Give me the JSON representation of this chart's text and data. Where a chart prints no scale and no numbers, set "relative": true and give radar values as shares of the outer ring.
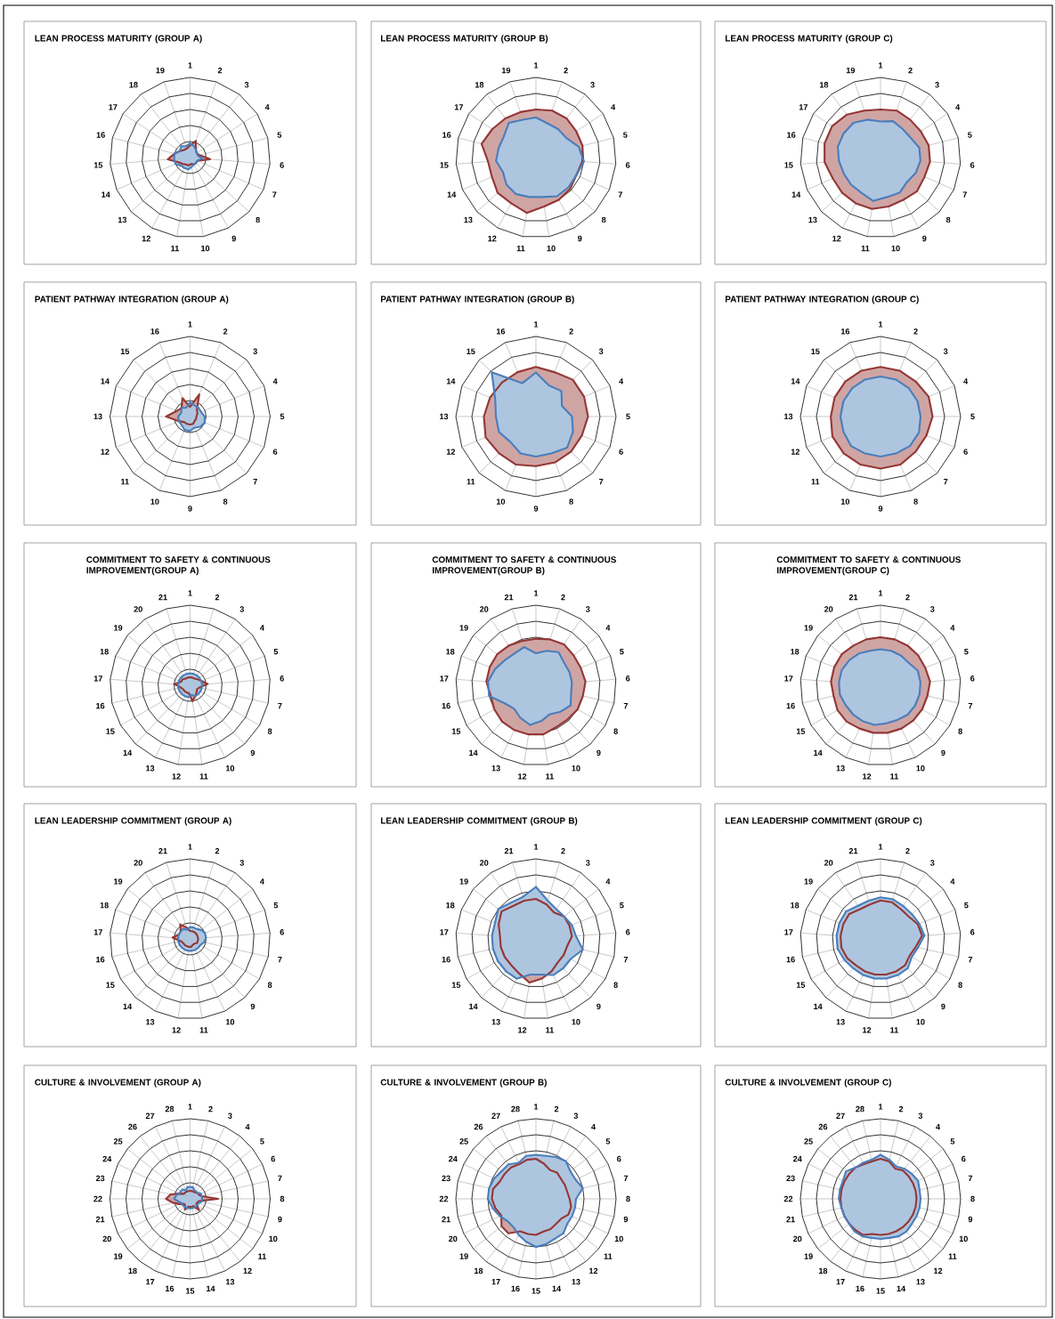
{
  "chart_data": [
    {
      "type": "radar",
      "title": "LEAN PROCESS MATURITY (GROUP A)",
      "relative": true,
      "grid": true,
      "categories": [
        "1",
        "2",
        "3",
        "4",
        "5",
        "6",
        "7",
        "8",
        "9",
        "10",
        "11",
        "12",
        "13",
        "14",
        "15",
        "16",
        "17",
        "18",
        "19"
      ],
      "series": [
        {
          "color": "#953735",
          "values": [
            0.15,
            0.22,
            0.12,
            0.1,
            0.12,
            0.25,
            0.1,
            0.1,
            0.1,
            0.08,
            0.1,
            0.1,
            0.12,
            0.15,
            0.28,
            0.2,
            0.15,
            0.12,
            0.12
          ]
        },
        {
          "color": "#4a7ebb",
          "values": [
            0.18,
            0.15,
            0.12,
            0.1,
            0.1,
            0.15,
            0.1,
            0.1,
            0.1,
            0.12,
            0.15,
            0.15,
            0.15,
            0.2,
            0.2,
            0.2,
            0.15,
            0.18,
            0.15
          ]
        }
      ]
    },
    {
      "type": "radar",
      "title": "LEAN PROCESS MATURITY (GROUP B)",
      "relative": true,
      "grid": true,
      "categories": [
        "1",
        "2",
        "3",
        "4",
        "5",
        "6",
        "7",
        "8",
        "9",
        "10",
        "11",
        "12",
        "13",
        "14",
        "15",
        "16",
        "17",
        "18",
        "19"
      ],
      "series": [
        {
          "color": "#953735",
          "values": [
            0.6,
            0.62,
            0.62,
            0.6,
            0.6,
            0.58,
            0.55,
            0.58,
            0.6,
            0.62,
            0.7,
            0.65,
            0.65,
            0.6,
            0.6,
            0.7,
            0.65,
            0.62,
            0.6
          ]
        },
        {
          "color": "#4a7ebb",
          "values": [
            0.5,
            0.45,
            0.45,
            0.45,
            0.55,
            0.6,
            0.55,
            0.55,
            0.55,
            0.5,
            0.5,
            0.52,
            0.5,
            0.45,
            0.5,
            0.48,
            0.48,
            0.55,
            0.5
          ]
        }
      ]
    },
    {
      "type": "radar",
      "title": "LEAN PROCESS MATURITY (GROUP C)",
      "relative": true,
      "grid": true,
      "categories": [
        "1",
        "2",
        "3",
        "4",
        "5",
        "6",
        "7",
        "8",
        "9",
        "10",
        "11",
        "12",
        "13",
        "14",
        "15",
        "16",
        "17",
        "18",
        "19"
      ],
      "series": [
        {
          "color": "#953735",
          "values": [
            0.6,
            0.62,
            0.6,
            0.6,
            0.62,
            0.62,
            0.6,
            0.62,
            0.6,
            0.62,
            0.65,
            0.65,
            0.65,
            0.65,
            0.7,
            0.72,
            0.72,
            0.68,
            0.62
          ]
        },
        {
          "color": "#4a7ebb",
          "values": [
            0.45,
            0.48,
            0.45,
            0.45,
            0.5,
            0.5,
            0.48,
            0.45,
            0.5,
            0.5,
            0.55,
            0.5,
            0.5,
            0.5,
            0.52,
            0.55,
            0.55,
            0.55,
            0.5
          ]
        }
      ]
    },
    {
      "type": "radar",
      "title": "PATIENT PATHWAY INTEGRATION (GROUP A)",
      "relative": true,
      "grid": true,
      "categories": [
        "1",
        "2",
        "3",
        "4",
        "5",
        "6",
        "7",
        "8",
        "9",
        "10",
        "11",
        "12",
        "13",
        "14",
        "15",
        "16"
      ],
      "series": [
        {
          "color": "#953735",
          "values": [
            0.12,
            0.3,
            0.12,
            0.1,
            0.08,
            0.08,
            0.08,
            0.1,
            0.1,
            0.1,
            0.1,
            0.15,
            0.3,
            0.18,
            0.15,
            0.25
          ]
        },
        {
          "color": "#4a7ebb",
          "values": [
            0.18,
            0.15,
            0.15,
            0.15,
            0.18,
            0.2,
            0.18,
            0.15,
            0.18,
            0.18,
            0.15,
            0.15,
            0.15,
            0.12,
            0.15,
            0.12
          ]
        }
      ]
    },
    {
      "type": "radar",
      "title": "PATIENT PATHWAY INTEGRATION (GROUP B)",
      "relative": true,
      "grid": true,
      "categories": [
        "1",
        "2",
        "3",
        "4",
        "5",
        "6",
        "7",
        "8",
        "9",
        "10",
        "11",
        "12",
        "13",
        "14",
        "15",
        "16"
      ],
      "series": [
        {
          "color": "#953735",
          "values": [
            0.62,
            0.6,
            0.65,
            0.65,
            0.65,
            0.62,
            0.62,
            0.62,
            0.62,
            0.65,
            0.65,
            0.68,
            0.65,
            0.62,
            0.6,
            0.6
          ]
        },
        {
          "color": "#4a7ebb",
          "values": [
            0.55,
            0.42,
            0.45,
            0.35,
            0.45,
            0.5,
            0.55,
            0.5,
            0.5,
            0.5,
            0.45,
            0.5,
            0.5,
            0.55,
            0.78,
            0.45
          ]
        }
      ]
    },
    {
      "type": "radar",
      "title": "PATIENT PATHWAY INTEGRATION (GROUP C)",
      "relative": true,
      "grid": true,
      "categories": [
        "1",
        "2",
        "3",
        "4",
        "5",
        "6",
        "7",
        "8",
        "9",
        "10",
        "11",
        "12",
        "13",
        "14",
        "15",
        "16"
      ],
      "series": [
        {
          "color": "#953735",
          "values": [
            0.62,
            0.62,
            0.62,
            0.65,
            0.65,
            0.62,
            0.62,
            0.65,
            0.65,
            0.65,
            0.65,
            0.65,
            0.62,
            0.62,
            0.62,
            0.62
          ]
        },
        {
          "color": "#4a7ebb",
          "values": [
            0.5,
            0.5,
            0.5,
            0.5,
            0.5,
            0.52,
            0.52,
            0.5,
            0.5,
            0.5,
            0.52,
            0.5,
            0.5,
            0.5,
            0.5,
            0.5
          ]
        }
      ]
    },
    {
      "type": "radar",
      "title": "COMMITMENT TO SAFETY & CONTINUOUS IMPROVEMENT(GROUP A)",
      "relative": true,
      "grid": true,
      "categories": [
        "1",
        "2",
        "3",
        "4",
        "5",
        "6",
        "7",
        "8",
        "9",
        "10",
        "11",
        "12",
        "13",
        "14",
        "15",
        "16",
        "17",
        "18",
        "19",
        "20",
        "21"
      ],
      "series": [
        {
          "color": "#953735",
          "values": [
            0.1,
            0.1,
            0.1,
            0.12,
            0.15,
            0.22,
            0.12,
            0.1,
            0.12,
            0.15,
            0.2,
            0.1,
            0.1,
            0.1,
            0.1,
            0.12,
            0.2,
            0.12,
            0.12,
            0.1,
            0.1
          ]
        },
        {
          "color": "#4a7ebb",
          "values": [
            0.15,
            0.15,
            0.15,
            0.15,
            0.15,
            0.15,
            0.15,
            0.15,
            0.15,
            0.15,
            0.12,
            0.15,
            0.15,
            0.15,
            0.15,
            0.15,
            0.15,
            0.15,
            0.15,
            0.15,
            0.15
          ]
        }
      ]
    },
    {
      "type": "radar",
      "title": "COMMITMENT TO SAFETY & CONTINUOUS IMPROVEMENT(GROUP B)",
      "relative": true,
      "grid": true,
      "categories": [
        "1",
        "2",
        "3",
        "4",
        "5",
        "6",
        "7",
        "8",
        "9",
        "10",
        "11",
        "12",
        "13",
        "14",
        "15",
        "16",
        "17",
        "18",
        "19",
        "20",
        "21"
      ],
      "series": [
        {
          "color": "#953735",
          "values": [
            0.58,
            0.6,
            0.62,
            0.6,
            0.6,
            0.62,
            0.6,
            0.6,
            0.58,
            0.58,
            0.62,
            0.62,
            0.62,
            0.62,
            0.6,
            0.58,
            0.62,
            0.62,
            0.62,
            0.6,
            0.58
          ]
        },
        {
          "color": "#4a7ebb",
          "values": [
            0.4,
            0.45,
            0.5,
            0.45,
            0.45,
            0.45,
            0.45,
            0.5,
            0.45,
            0.4,
            0.45,
            0.5,
            0.45,
            0.4,
            0.45,
            0.6,
            0.6,
            0.55,
            0.5,
            0.48,
            0.5
          ]
        }
      ]
    },
    {
      "type": "radar",
      "title": "COMMITMENT TO SAFETY & CONTINUOUS IMPROVEMENT(GROUP C)",
      "relative": true,
      "grid": true,
      "categories": [
        "1",
        "2",
        "3",
        "4",
        "5",
        "6",
        "7",
        "8",
        "9",
        "10",
        "11",
        "12",
        "13",
        "14",
        "15",
        "16",
        "17",
        "18",
        "19",
        "20",
        "21"
      ],
      "series": [
        {
          "color": "#953735",
          "values": [
            0.6,
            0.6,
            0.6,
            0.6,
            0.6,
            0.62,
            0.6,
            0.6,
            0.6,
            0.6,
            0.6,
            0.6,
            0.6,
            0.62,
            0.62,
            0.6,
            0.62,
            0.62,
            0.62,
            0.6,
            0.6
          ]
        },
        {
          "color": "#4a7ebb",
          "values": [
            0.45,
            0.45,
            0.45,
            0.45,
            0.5,
            0.5,
            0.5,
            0.5,
            0.5,
            0.48,
            0.48,
            0.5,
            0.5,
            0.5,
            0.5,
            0.52,
            0.52,
            0.52,
            0.5,
            0.48,
            0.45
          ]
        }
      ]
    },
    {
      "type": "radar",
      "title": "LEAN LEADERSHIP COMMITMENT (GROUP A)",
      "relative": true,
      "grid": true,
      "categories": [
        "1",
        "2",
        "3",
        "4",
        "5",
        "6",
        "7",
        "8",
        "9",
        "10",
        "11",
        "12",
        "13",
        "14",
        "15",
        "16",
        "17",
        "18",
        "19",
        "20",
        "21"
      ],
      "series": [
        {
          "color": "#953735",
          "values": [
            0.1,
            0.1,
            0.1,
            0.1,
            0.1,
            0.1,
            0.1,
            0.1,
            0.08,
            0.08,
            0.1,
            0.1,
            0.1,
            0.1,
            0.1,
            0.12,
            0.22,
            0.15,
            0.15,
            0.22,
            0.15
          ]
        },
        {
          "color": "#4a7ebb",
          "values": [
            0.15,
            0.15,
            0.15,
            0.18,
            0.2,
            0.2,
            0.18,
            0.15,
            0.15,
            0.15,
            0.15,
            0.15,
            0.15,
            0.15,
            0.15,
            0.15,
            0.15,
            0.15,
            0.15,
            0.15,
            0.12
          ]
        }
      ]
    },
    {
      "type": "radar",
      "title": "LEAN LEADERSHIP COMMITMENT (GROUP B)",
      "relative": true,
      "grid": true,
      "categories": [
        "1",
        "2",
        "3",
        "4",
        "5",
        "6",
        "7",
        "8",
        "9",
        "10",
        "11",
        "12",
        "13",
        "14",
        "15",
        "16",
        "17",
        "18",
        "19",
        "20",
        "21"
      ],
      "series": [
        {
          "color": "#953735",
          "values": [
            0.5,
            0.45,
            0.4,
            0.45,
            0.45,
            0.45,
            0.4,
            0.4,
            0.4,
            0.45,
            0.5,
            0.55,
            0.48,
            0.45,
            0.45,
            0.45,
            0.45,
            0.5,
            0.55,
            0.5,
            0.5
          ]
        },
        {
          "color": "#4a7ebb",
          "values": [
            0.65,
            0.5,
            0.45,
            0.45,
            0.48,
            0.5,
            0.6,
            0.5,
            0.5,
            0.5,
            0.45,
            0.45,
            0.55,
            0.55,
            0.55,
            0.55,
            0.55,
            0.55,
            0.6,
            0.55,
            0.55
          ]
        }
      ]
    },
    {
      "type": "radar",
      "title": "LEAN LEADERSHIP COMMITMENT (GROUP C)",
      "relative": true,
      "grid": true,
      "categories": [
        "1",
        "2",
        "3",
        "4",
        "5",
        "6",
        "7",
        "8",
        "9",
        "10",
        "11",
        "12",
        "13",
        "14",
        "15",
        "16",
        "17",
        "18",
        "19",
        "20",
        "21"
      ],
      "series": [
        {
          "color": "#953735",
          "values": [
            0.48,
            0.48,
            0.45,
            0.45,
            0.5,
            0.52,
            0.45,
            0.42,
            0.45,
            0.45,
            0.45,
            0.45,
            0.45,
            0.45,
            0.48,
            0.5,
            0.5,
            0.5,
            0.5,
            0.45,
            0.45
          ]
        },
        {
          "color": "#4a7ebb",
          "values": [
            0.52,
            0.52,
            0.5,
            0.5,
            0.52,
            0.55,
            0.48,
            0.45,
            0.5,
            0.5,
            0.5,
            0.5,
            0.5,
            0.5,
            0.52,
            0.55,
            0.55,
            0.55,
            0.55,
            0.5,
            0.5
          ]
        }
      ]
    },
    {
      "type": "radar",
      "title": "CULTURE & INVOLVEMENT (GROUP A)",
      "relative": true,
      "grid": true,
      "categories": [
        "1",
        "2",
        "3",
        "4",
        "5",
        "6",
        "7",
        "8",
        "9",
        "10",
        "11",
        "12",
        "13",
        "14",
        "15",
        "16",
        "17",
        "18",
        "19",
        "20",
        "21",
        "22",
        "23",
        "24",
        "25",
        "26",
        "27",
        "28"
      ],
      "series": [
        {
          "color": "#953735",
          "values": [
            0.1,
            0.1,
            0.1,
            0.1,
            0.12,
            0.12,
            0.15,
            0.35,
            0.12,
            0.1,
            0.1,
            0.18,
            0.1,
            0.1,
            0.1,
            0.1,
            0.15,
            0.1,
            0.1,
            0.15,
            0.22,
            0.3,
            0.25,
            0.15,
            0.1,
            0.1,
            0.1,
            0.1
          ]
        },
        {
          "color": "#4a7ebb",
          "values": [
            0.15,
            0.15,
            0.12,
            0.12,
            0.12,
            0.15,
            0.15,
            0.15,
            0.15,
            0.12,
            0.12,
            0.12,
            0.12,
            0.12,
            0.12,
            0.12,
            0.12,
            0.12,
            0.12,
            0.12,
            0.15,
            0.2,
            0.18,
            0.15,
            0.15,
            0.15,
            0.12,
            0.15
          ]
        }
      ]
    },
    {
      "type": "radar",
      "title": "CULTURE & INVOLVEMENT (GROUP B)",
      "relative": true,
      "grid": true,
      "categories": [
        "1",
        "2",
        "3",
        "4",
        "5",
        "6",
        "7",
        "8",
        "9",
        "10",
        "11",
        "12",
        "13",
        "14",
        "15",
        "16",
        "17",
        "18",
        "19",
        "20",
        "21",
        "22",
        "23",
        "24",
        "25",
        "26",
        "27",
        "28"
      ],
      "series": [
        {
          "color": "#953735",
          "values": [
            0.5,
            0.45,
            0.4,
            0.42,
            0.4,
            0.4,
            0.4,
            0.42,
            0.45,
            0.45,
            0.4,
            0.4,
            0.42,
            0.42,
            0.45,
            0.45,
            0.45,
            0.55,
            0.55,
            0.48,
            0.52,
            0.55,
            0.55,
            0.5,
            0.5,
            0.5,
            0.48,
            0.5
          ]
        },
        {
          "color": "#4a7ebb",
          "values": [
            0.55,
            0.55,
            0.58,
            0.6,
            0.55,
            0.55,
            0.6,
            0.5,
            0.5,
            0.5,
            0.5,
            0.55,
            0.55,
            0.58,
            0.6,
            0.55,
            0.5,
            0.45,
            0.45,
            0.5,
            0.55,
            0.6,
            0.6,
            0.58,
            0.55,
            0.55,
            0.5,
            0.55
          ]
        }
      ]
    },
    {
      "type": "radar",
      "title": "CULTURE & INVOLVEMENT (GROUP C)",
      "relative": true,
      "grid": true,
      "categories": [
        "1",
        "2",
        "3",
        "4",
        "5",
        "6",
        "7",
        "8",
        "9",
        "10",
        "11",
        "12",
        "13",
        "14",
        "15",
        "16",
        "17",
        "18",
        "19",
        "20",
        "21",
        "22",
        "23",
        "24",
        "25",
        "26",
        "27",
        "28"
      ],
      "series": [
        {
          "color": "#953735",
          "values": [
            0.5,
            0.48,
            0.42,
            0.45,
            0.45,
            0.45,
            0.45,
            0.45,
            0.45,
            0.45,
            0.45,
            0.45,
            0.45,
            0.45,
            0.45,
            0.45,
            0.5,
            0.5,
            0.5,
            0.5,
            0.5,
            0.5,
            0.5,
            0.5,
            0.5,
            0.5,
            0.48,
            0.48
          ]
        },
        {
          "color": "#4a7ebb",
          "values": [
            0.55,
            0.5,
            0.45,
            0.48,
            0.5,
            0.52,
            0.5,
            0.5,
            0.5,
            0.5,
            0.5,
            0.52,
            0.52,
            0.5,
            0.5,
            0.5,
            0.52,
            0.52,
            0.5,
            0.5,
            0.5,
            0.52,
            0.52,
            0.52,
            0.55,
            0.5,
            0.5,
            0.5
          ]
        }
      ]
    }
  ]
}
